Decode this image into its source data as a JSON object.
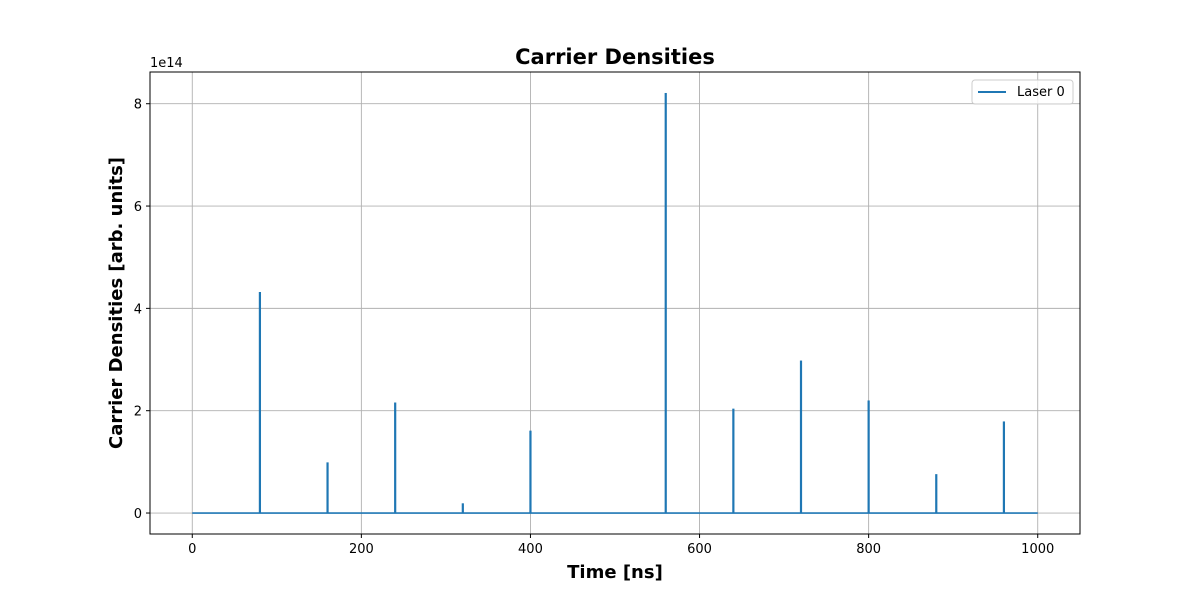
{
  "chart_data": {
    "type": "line",
    "title": "Carrier Densities",
    "xlabel": "Time [ns]",
    "ylabel": "Carrier Densities [arb. units]",
    "y_offset_label": "1e14",
    "xlim": [
      -50,
      1050
    ],
    "ylim": [
      -0.41,
      8.62
    ],
    "y_scale_factor": 100000000000000.0,
    "x_ticks": [
      0,
      200,
      400,
      600,
      800,
      1000
    ],
    "x_tick_labels": [
      "0",
      "200",
      "400",
      "600",
      "800",
      "1000"
    ],
    "y_ticks": [
      0,
      2,
      4,
      6,
      8
    ],
    "y_tick_labels": [
      "0",
      "2",
      "4",
      "6",
      "8"
    ],
    "grid": true,
    "legend_position": "top-right",
    "baseline": 0,
    "x_range": [
      0,
      1000
    ],
    "series": [
      {
        "name": "Laser 0",
        "color": "#1f77b4",
        "spikes": [
          {
            "x": 80,
            "y": 4.32
          },
          {
            "x": 160,
            "y": 0.99
          },
          {
            "x": 240,
            "y": 2.16
          },
          {
            "x": 320,
            "y": 0.19
          },
          {
            "x": 400,
            "y": 1.61
          },
          {
            "x": 560,
            "y": 8.21
          },
          {
            "x": 640,
            "y": 2.04
          },
          {
            "x": 720,
            "y": 2.98
          },
          {
            "x": 800,
            "y": 2.2
          },
          {
            "x": 880,
            "y": 0.76
          },
          {
            "x": 960,
            "y": 1.79
          }
        ]
      }
    ]
  }
}
